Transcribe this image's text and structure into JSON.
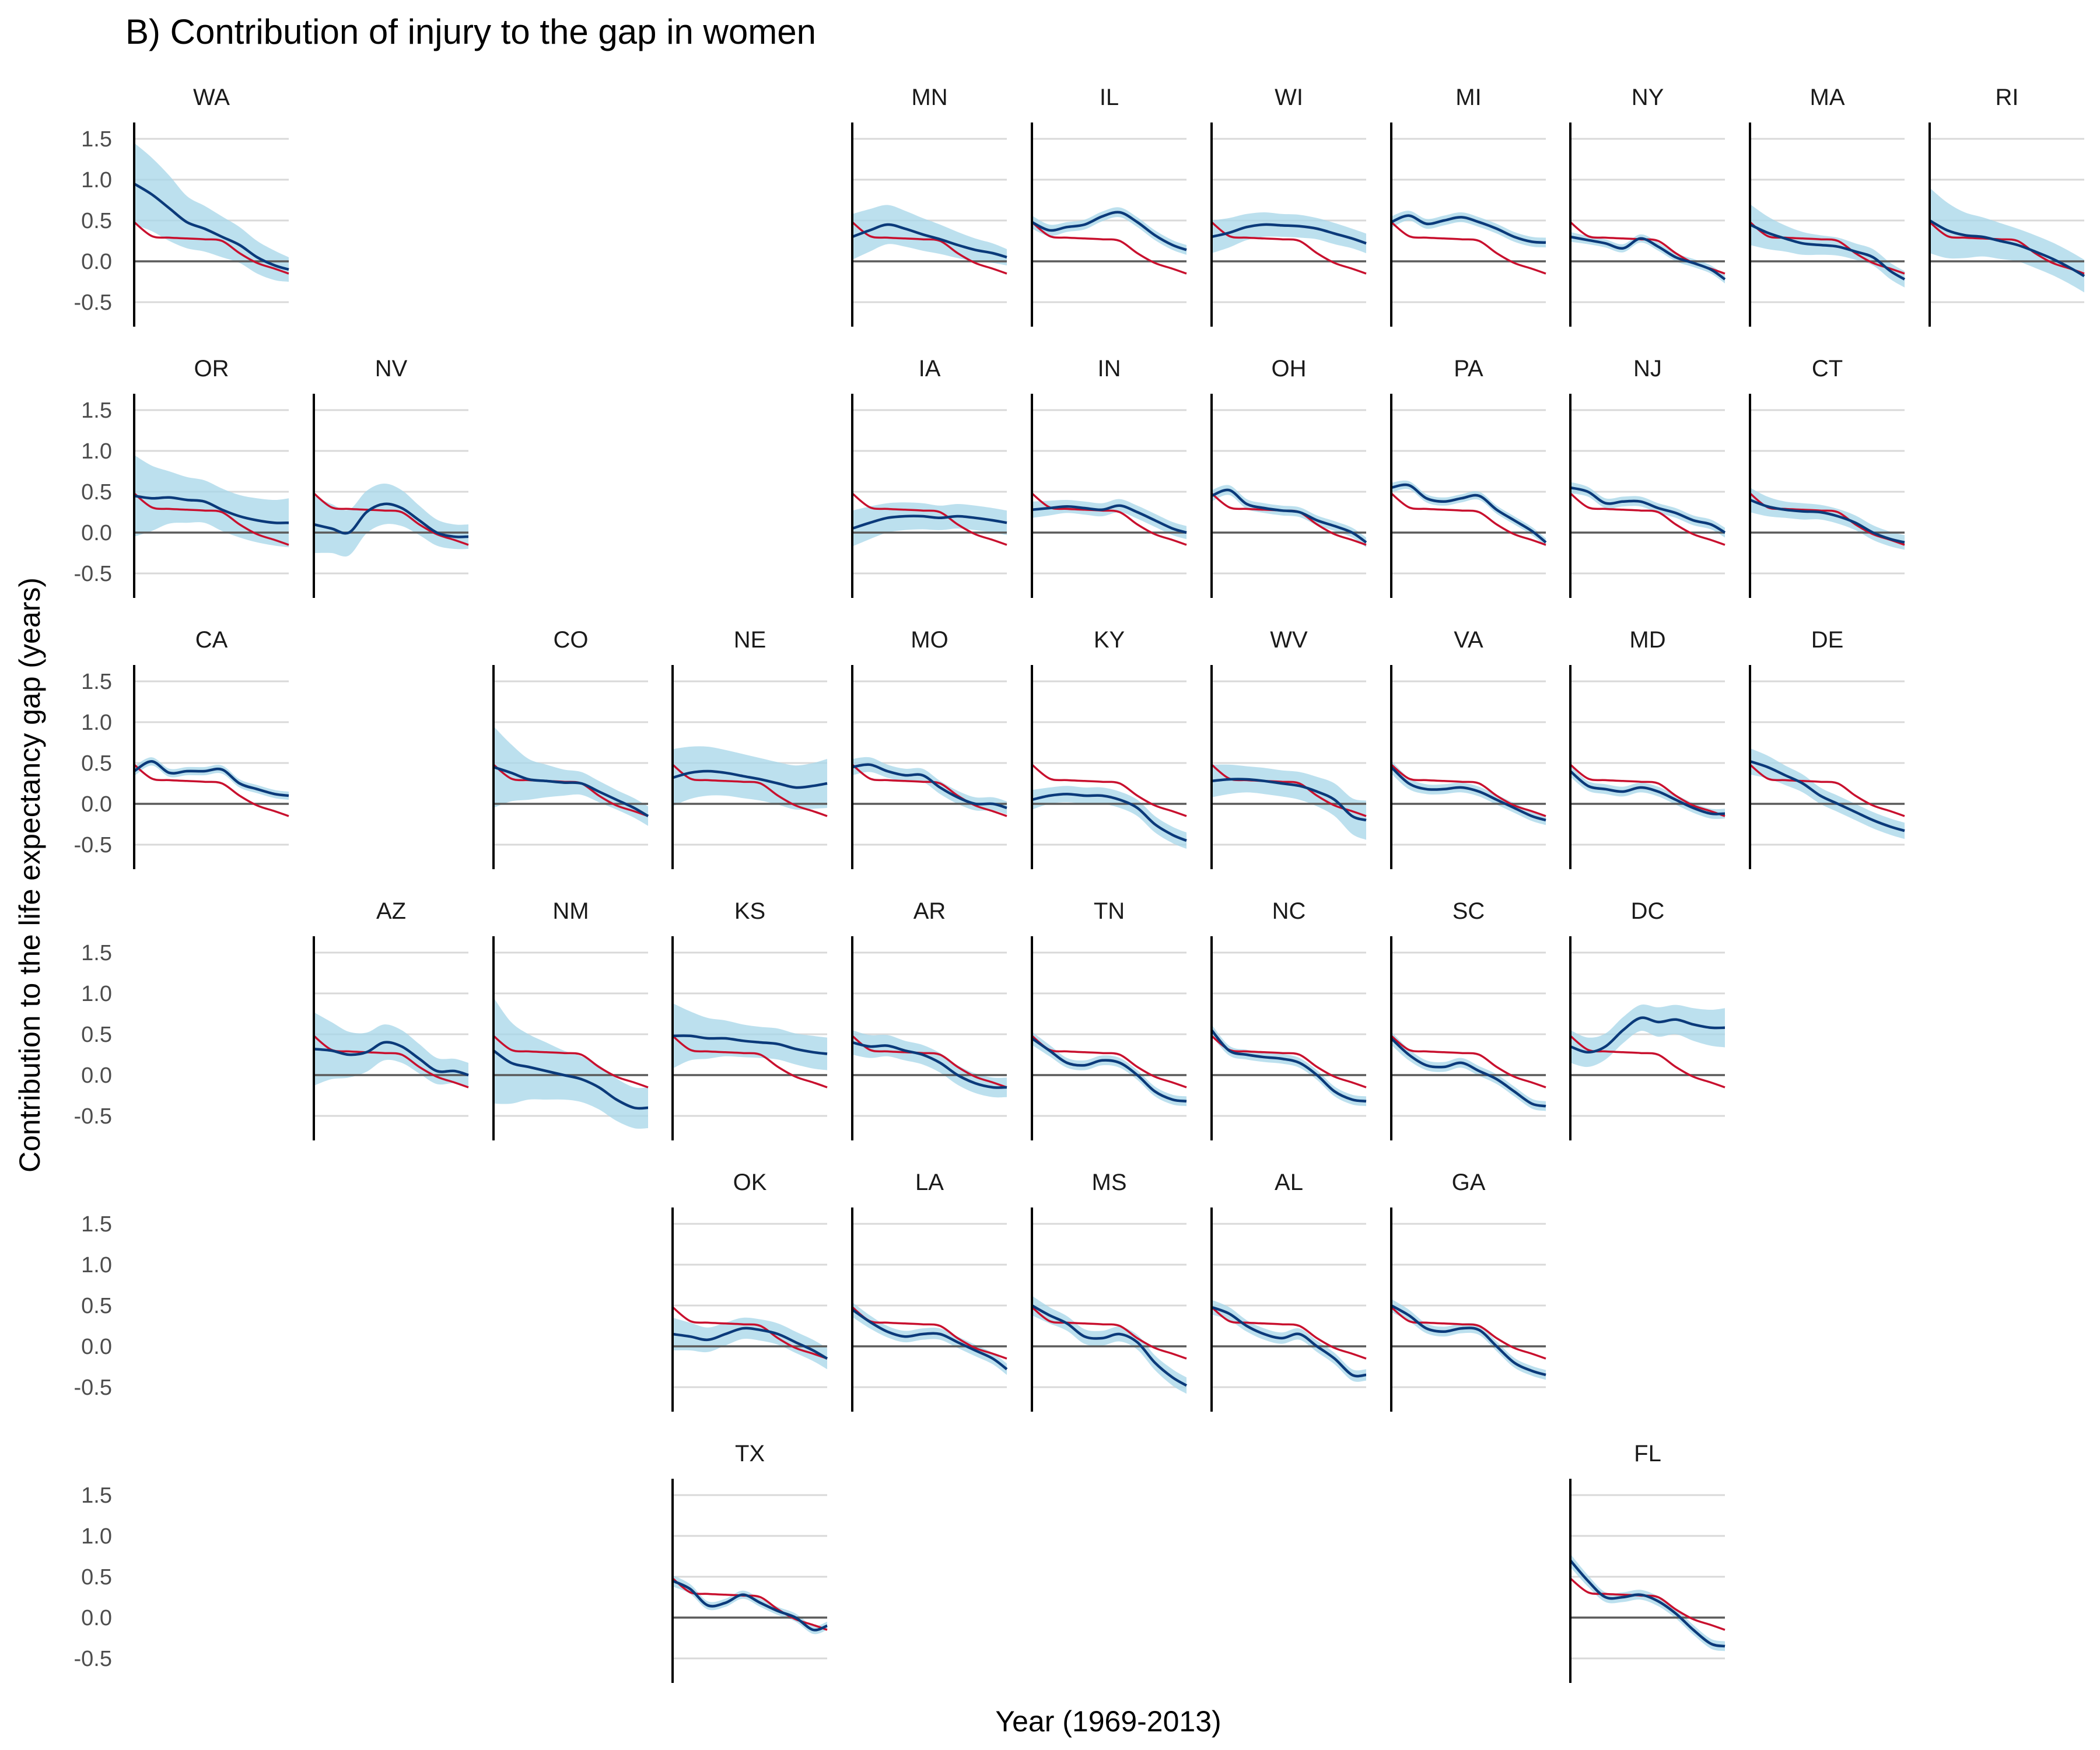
{
  "chart_data": {
    "type": "line",
    "title": "B) Contribution of injury to the gap in women",
    "xlabel": "Year (1969-2013)",
    "ylabel": "Contribution to the life expectancy gap (years)",
    "x_range": [
      1969,
      2013
    ],
    "ylim": [
      -0.8,
      1.7
    ],
    "y_ticks": [
      {
        "value": 1.5,
        "label": "1.5"
      },
      {
        "value": 1.0,
        "label": "1.0"
      },
      {
        "value": 0.5,
        "label": "0.5"
      },
      {
        "value": 0.0,
        "label": "0.0"
      },
      {
        "value": -0.5,
        "label": "-0.5"
      }
    ],
    "grid": true,
    "reference_line": 0,
    "colors": {
      "band": "#a6d5e8",
      "state_line": "#0b3a7a",
      "national_line": "#c8102e"
    },
    "years": [
      1969,
      1974,
      1979,
      1984,
      1989,
      1994,
      1999,
      2004,
      2009,
      2013
    ],
    "national": [
      0.48,
      0.31,
      0.29,
      0.28,
      0.27,
      0.25,
      0.1,
      -0.02,
      -0.09,
      -0.15
    ],
    "panels": [
      {
        "state": "WA",
        "row": 0,
        "col": 0,
        "y": [
          0.95,
          0.82,
          0.65,
          0.48,
          0.4,
          0.3,
          0.2,
          0.05,
          -0.05,
          -0.1
        ],
        "band": [
          0.5,
          0.45,
          0.4,
          0.32,
          0.28,
          0.25,
          0.22,
          0.2,
          0.18,
          0.15
        ]
      },
      {
        "state": "MN",
        "row": 0,
        "col": 4,
        "y": [
          0.3,
          0.38,
          0.45,
          0.4,
          0.33,
          0.27,
          0.2,
          0.14,
          0.1,
          0.05
        ],
        "band": [
          0.28,
          0.26,
          0.24,
          0.22,
          0.2,
          0.18,
          0.16,
          0.14,
          0.12,
          0.1
        ]
      },
      {
        "state": "IL",
        "row": 0,
        "col": 5,
        "y": [
          0.48,
          0.38,
          0.42,
          0.45,
          0.55,
          0.6,
          0.48,
          0.32,
          0.2,
          0.14
        ],
        "band": [
          0.08,
          0.07,
          0.06,
          0.06,
          0.06,
          0.06,
          0.06,
          0.06,
          0.06,
          0.06
        ]
      },
      {
        "state": "WI",
        "row": 0,
        "col": 6,
        "y": [
          0.3,
          0.35,
          0.42,
          0.45,
          0.44,
          0.43,
          0.4,
          0.34,
          0.28,
          0.22
        ],
        "band": [
          0.2,
          0.18,
          0.16,
          0.15,
          0.14,
          0.14,
          0.13,
          0.13,
          0.12,
          0.12
        ]
      },
      {
        "state": "MI",
        "row": 0,
        "col": 7,
        "y": [
          0.48,
          0.56,
          0.46,
          0.5,
          0.54,
          0.48,
          0.4,
          0.3,
          0.24,
          0.23
        ],
        "band": [
          0.07,
          0.06,
          0.06,
          0.06,
          0.06,
          0.06,
          0.06,
          0.06,
          0.06,
          0.06
        ]
      },
      {
        "state": "NY",
        "row": 0,
        "col": 8,
        "y": [
          0.3,
          0.26,
          0.22,
          0.16,
          0.28,
          0.18,
          0.05,
          -0.02,
          -0.1,
          -0.22
        ],
        "band": [
          0.06,
          0.05,
          0.05,
          0.05,
          0.05,
          0.05,
          0.05,
          0.05,
          0.05,
          0.05
        ]
      },
      {
        "state": "MA",
        "row": 0,
        "col": 9,
        "y": [
          0.45,
          0.35,
          0.28,
          0.22,
          0.2,
          0.18,
          0.12,
          0.05,
          -0.12,
          -0.22
        ],
        "band": [
          0.25,
          0.2,
          0.16,
          0.14,
          0.12,
          0.11,
          0.1,
          0.1,
          0.1,
          0.1
        ]
      },
      {
        "state": "RI",
        "row": 0,
        "col": 10,
        "y": [
          0.5,
          0.38,
          0.32,
          0.3,
          0.25,
          0.2,
          0.12,
          0.03,
          -0.08,
          -0.18
        ],
        "band": [
          0.4,
          0.34,
          0.28,
          0.24,
          0.22,
          0.2,
          0.2,
          0.2,
          0.2,
          0.2
        ]
      },
      {
        "state": "OR",
        "row": 1,
        "col": 0,
        "y": [
          0.45,
          0.42,
          0.43,
          0.4,
          0.38,
          0.28,
          0.2,
          0.15,
          0.12,
          0.12
        ],
        "band": [
          0.5,
          0.4,
          0.32,
          0.28,
          0.26,
          0.26,
          0.26,
          0.27,
          0.28,
          0.3
        ]
      },
      {
        "state": "NV",
        "row": 1,
        "col": 1,
        "y": [
          0.1,
          0.05,
          0.0,
          0.25,
          0.35,
          0.3,
          0.15,
          0.0,
          -0.05,
          -0.05
        ],
        "band": [
          0.35,
          0.3,
          0.28,
          0.26,
          0.25,
          0.22,
          0.18,
          0.16,
          0.15,
          0.15
        ]
      },
      {
        "state": "IA",
        "row": 1,
        "col": 4,
        "y": [
          0.05,
          0.12,
          0.18,
          0.2,
          0.2,
          0.18,
          0.2,
          0.18,
          0.15,
          0.12
        ],
        "band": [
          0.22,
          0.2,
          0.18,
          0.17,
          0.16,
          0.15,
          0.15,
          0.15,
          0.15,
          0.15
        ]
      },
      {
        "state": "IN",
        "row": 1,
        "col": 5,
        "y": [
          0.28,
          0.3,
          0.32,
          0.3,
          0.28,
          0.33,
          0.25,
          0.15,
          0.05,
          0.0
        ],
        "band": [
          0.1,
          0.09,
          0.08,
          0.08,
          0.08,
          0.08,
          0.08,
          0.08,
          0.08,
          0.08
        ]
      },
      {
        "state": "OH",
        "row": 1,
        "col": 6,
        "y": [
          0.45,
          0.52,
          0.35,
          0.3,
          0.27,
          0.25,
          0.15,
          0.08,
          0.0,
          -0.12
        ],
        "band": [
          0.07,
          0.06,
          0.06,
          0.06,
          0.06,
          0.06,
          0.06,
          0.06,
          0.06,
          0.06
        ]
      },
      {
        "state": "PA",
        "row": 1,
        "col": 7,
        "y": [
          0.55,
          0.58,
          0.42,
          0.38,
          0.42,
          0.45,
          0.28,
          0.15,
          0.02,
          -0.12
        ],
        "band": [
          0.06,
          0.05,
          0.05,
          0.05,
          0.05,
          0.05,
          0.05,
          0.05,
          0.05,
          0.05
        ]
      },
      {
        "state": "NJ",
        "row": 1,
        "col": 8,
        "y": [
          0.55,
          0.5,
          0.36,
          0.38,
          0.38,
          0.3,
          0.24,
          0.15,
          0.1,
          0.0
        ],
        "band": [
          0.07,
          0.06,
          0.06,
          0.06,
          0.06,
          0.06,
          0.06,
          0.06,
          0.06,
          0.06
        ]
      },
      {
        "state": "CT",
        "row": 1,
        "col": 9,
        "y": [
          0.4,
          0.32,
          0.28,
          0.26,
          0.25,
          0.2,
          0.12,
          0.0,
          -0.08,
          -0.12
        ],
        "band": [
          0.15,
          0.12,
          0.1,
          0.1,
          0.09,
          0.09,
          0.09,
          0.09,
          0.09,
          0.09
        ]
      },
      {
        "state": "CA",
        "row": 2,
        "col": 0,
        "y": [
          0.4,
          0.52,
          0.38,
          0.4,
          0.4,
          0.42,
          0.25,
          0.18,
          0.12,
          0.1
        ],
        "band": [
          0.06,
          0.05,
          0.05,
          0.05,
          0.05,
          0.05,
          0.05,
          0.05,
          0.05,
          0.05
        ]
      },
      {
        "state": "CO",
        "row": 2,
        "col": 2,
        "y": [
          0.45,
          0.38,
          0.3,
          0.28,
          0.26,
          0.25,
          0.15,
          0.05,
          -0.05,
          -0.15
        ],
        "band": [
          0.5,
          0.35,
          0.25,
          0.2,
          0.16,
          0.14,
          0.13,
          0.12,
          0.12,
          0.12
        ]
      },
      {
        "state": "NE",
        "row": 2,
        "col": 3,
        "y": [
          0.32,
          0.38,
          0.4,
          0.38,
          0.34,
          0.3,
          0.25,
          0.2,
          0.22,
          0.25
        ],
        "band": [
          0.35,
          0.32,
          0.3,
          0.28,
          0.27,
          0.26,
          0.26,
          0.27,
          0.28,
          0.3
        ]
      },
      {
        "state": "MO",
        "row": 2,
        "col": 4,
        "y": [
          0.45,
          0.48,
          0.4,
          0.35,
          0.35,
          0.2,
          0.08,
          0.0,
          0.0,
          -0.05
        ],
        "band": [
          0.1,
          0.09,
          0.08,
          0.08,
          0.08,
          0.08,
          0.08,
          0.08,
          0.08,
          0.08
        ]
      },
      {
        "state": "KY",
        "row": 2,
        "col": 5,
        "y": [
          0.05,
          0.1,
          0.12,
          0.1,
          0.1,
          0.05,
          -0.05,
          -0.25,
          -0.38,
          -0.45
        ],
        "band": [
          0.12,
          0.1,
          0.1,
          0.1,
          0.1,
          0.1,
          0.1,
          0.1,
          0.1,
          0.1
        ]
      },
      {
        "state": "WV",
        "row": 2,
        "col": 6,
        "y": [
          0.28,
          0.3,
          0.3,
          0.28,
          0.25,
          0.22,
          0.15,
          0.05,
          -0.15,
          -0.2
        ],
        "band": [
          0.2,
          0.18,
          0.16,
          0.16,
          0.16,
          0.17,
          0.18,
          0.2,
          0.22,
          0.24
        ]
      },
      {
        "state": "VA",
        "row": 2,
        "col": 7,
        "y": [
          0.45,
          0.25,
          0.18,
          0.18,
          0.2,
          0.15,
          0.05,
          -0.05,
          -0.15,
          -0.2
        ],
        "band": [
          0.08,
          0.07,
          0.06,
          0.06,
          0.06,
          0.06,
          0.06,
          0.06,
          0.06,
          0.06
        ]
      },
      {
        "state": "MD",
        "row": 2,
        "col": 8,
        "y": [
          0.4,
          0.22,
          0.18,
          0.15,
          0.2,
          0.15,
          0.05,
          -0.05,
          -0.12,
          -0.12
        ],
        "band": [
          0.07,
          0.06,
          0.06,
          0.06,
          0.06,
          0.06,
          0.06,
          0.06,
          0.06,
          0.06
        ]
      },
      {
        "state": "DE",
        "row": 2,
        "col": 9,
        "y": [
          0.52,
          0.45,
          0.35,
          0.25,
          0.1,
          0.0,
          -0.1,
          -0.2,
          -0.28,
          -0.33
        ],
        "band": [
          0.16,
          0.14,
          0.12,
          0.11,
          0.1,
          0.1,
          0.1,
          0.1,
          0.1,
          0.1
        ]
      },
      {
        "state": "AZ",
        "row": 3,
        "col": 1,
        "y": [
          0.32,
          0.3,
          0.25,
          0.28,
          0.4,
          0.35,
          0.2,
          0.05,
          0.05,
          0.0
        ],
        "band": [
          0.45,
          0.35,
          0.28,
          0.24,
          0.22,
          0.2,
          0.18,
          0.16,
          0.15,
          0.15
        ]
      },
      {
        "state": "NM",
        "row": 3,
        "col": 2,
        "y": [
          0.3,
          0.15,
          0.1,
          0.05,
          0.0,
          -0.05,
          -0.15,
          -0.3,
          -0.4,
          -0.4
        ],
        "band": [
          0.65,
          0.5,
          0.4,
          0.35,
          0.3,
          0.28,
          0.27,
          0.26,
          0.25,
          0.25
        ]
      },
      {
        "state": "KS",
        "row": 3,
        "col": 3,
        "y": [
          0.48,
          0.48,
          0.45,
          0.45,
          0.42,
          0.4,
          0.38,
          0.32,
          0.28,
          0.26
        ],
        "band": [
          0.4,
          0.3,
          0.25,
          0.22,
          0.2,
          0.19,
          0.19,
          0.19,
          0.2,
          0.2
        ]
      },
      {
        "state": "AR",
        "row": 3,
        "col": 4,
        "y": [
          0.4,
          0.35,
          0.36,
          0.3,
          0.25,
          0.15,
          0.0,
          -0.1,
          -0.15,
          -0.15
        ],
        "band": [
          0.15,
          0.14,
          0.13,
          0.12,
          0.12,
          0.12,
          0.12,
          0.12,
          0.12,
          0.12
        ]
      },
      {
        "state": "TN",
        "row": 3,
        "col": 5,
        "y": [
          0.45,
          0.3,
          0.15,
          0.12,
          0.18,
          0.15,
          0.0,
          -0.2,
          -0.3,
          -0.32
        ],
        "band": [
          0.08,
          0.07,
          0.06,
          0.06,
          0.06,
          0.06,
          0.06,
          0.06,
          0.06,
          0.06
        ]
      },
      {
        "state": "NC",
        "row": 3,
        "col": 6,
        "y": [
          0.55,
          0.3,
          0.25,
          0.22,
          0.2,
          0.15,
          0.0,
          -0.2,
          -0.3,
          -0.32
        ],
        "band": [
          0.07,
          0.06,
          0.06,
          0.06,
          0.06,
          0.06,
          0.06,
          0.06,
          0.06,
          0.06
        ]
      },
      {
        "state": "SC",
        "row": 3,
        "col": 7,
        "y": [
          0.45,
          0.25,
          0.12,
          0.1,
          0.15,
          0.05,
          -0.05,
          -0.2,
          -0.35,
          -0.38
        ],
        "band": [
          0.08,
          0.07,
          0.06,
          0.06,
          0.06,
          0.06,
          0.06,
          0.06,
          0.06,
          0.06
        ]
      },
      {
        "state": "DC",
        "row": 3,
        "col": 8,
        "y": [
          0.35,
          0.28,
          0.35,
          0.55,
          0.7,
          0.65,
          0.68,
          0.62,
          0.58,
          0.58
        ],
        "band": [
          0.2,
          0.18,
          0.16,
          0.16,
          0.16,
          0.18,
          0.18,
          0.2,
          0.22,
          0.24
        ]
      },
      {
        "state": "OK",
        "row": 4,
        "col": 3,
        "y": [
          0.15,
          0.12,
          0.08,
          0.15,
          0.22,
          0.2,
          0.15,
          0.05,
          -0.05,
          -0.15
        ],
        "band": [
          0.2,
          0.17,
          0.15,
          0.14,
          0.13,
          0.13,
          0.13,
          0.13,
          0.13,
          0.13
        ]
      },
      {
        "state": "LA",
        "row": 4,
        "col": 4,
        "y": [
          0.45,
          0.3,
          0.18,
          0.12,
          0.15,
          0.15,
          0.05,
          -0.05,
          -0.15,
          -0.28
        ],
        "band": [
          0.09,
          0.08,
          0.07,
          0.07,
          0.07,
          0.07,
          0.07,
          0.07,
          0.07,
          0.07
        ]
      },
      {
        "state": "MS",
        "row": 4,
        "col": 5,
        "y": [
          0.5,
          0.38,
          0.28,
          0.12,
          0.1,
          0.15,
          0.05,
          -0.2,
          -0.38,
          -0.48
        ],
        "band": [
          0.12,
          0.1,
          0.09,
          0.09,
          0.09,
          0.09,
          0.09,
          0.09,
          0.1,
          0.1
        ]
      },
      {
        "state": "AL",
        "row": 4,
        "col": 6,
        "y": [
          0.48,
          0.4,
          0.25,
          0.15,
          0.1,
          0.15,
          0.0,
          -0.15,
          -0.35,
          -0.35
        ],
        "band": [
          0.09,
          0.08,
          0.07,
          0.07,
          0.07,
          0.07,
          0.07,
          0.07,
          0.07,
          0.07
        ]
      },
      {
        "state": "GA",
        "row": 4,
        "col": 7,
        "y": [
          0.5,
          0.38,
          0.22,
          0.18,
          0.22,
          0.2,
          0.0,
          -0.2,
          -0.3,
          -0.35
        ],
        "band": [
          0.08,
          0.07,
          0.06,
          0.06,
          0.06,
          0.06,
          0.06,
          0.06,
          0.06,
          0.06
        ]
      },
      {
        "state": "TX",
        "row": 5,
        "col": 3,
        "y": [
          0.45,
          0.35,
          0.15,
          0.18,
          0.28,
          0.18,
          0.08,
          0.0,
          -0.15,
          -0.1
        ],
        "band": [
          0.07,
          0.06,
          0.05,
          0.05,
          0.05,
          0.05,
          0.05,
          0.05,
          0.05,
          0.05
        ]
      },
      {
        "state": "FL",
        "row": 5,
        "col": 8,
        "y": [
          0.7,
          0.45,
          0.25,
          0.25,
          0.28,
          0.2,
          0.05,
          -0.15,
          -0.32,
          -0.35
        ],
        "band": [
          0.08,
          0.07,
          0.06,
          0.06,
          0.06,
          0.06,
          0.06,
          0.06,
          0.06,
          0.06
        ]
      }
    ]
  }
}
